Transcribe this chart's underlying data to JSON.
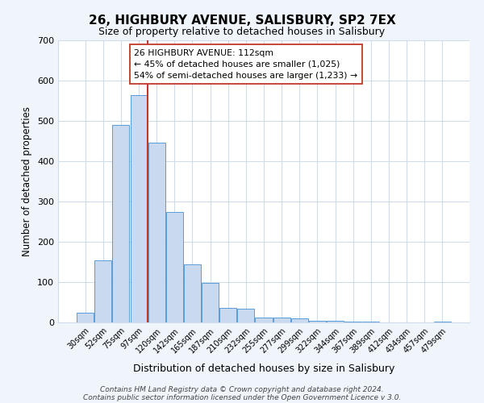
{
  "title": "26, HIGHBURY AVENUE, SALISBURY, SP2 7EX",
  "subtitle": "Size of property relative to detached houses in Salisbury",
  "xlabel": "Distribution of detached houses by size in Salisbury",
  "ylabel": "Number of detached properties",
  "categories": [
    "30sqm",
    "52sqm",
    "75sqm",
    "97sqm",
    "120sqm",
    "142sqm",
    "165sqm",
    "187sqm",
    "210sqm",
    "232sqm",
    "255sqm",
    "277sqm",
    "299sqm",
    "322sqm",
    "344sqm",
    "367sqm",
    "389sqm",
    "412sqm",
    "434sqm",
    "457sqm",
    "479sqm"
  ],
  "bar_values": [
    25,
    155,
    490,
    565,
    447,
    275,
    145,
    98,
    37,
    35,
    13,
    13,
    10,
    5,
    5,
    2,
    2,
    1,
    0,
    0,
    3
  ],
  "bar_color": "#c9d9f0",
  "bar_edge_color": "#5b9bd5",
  "vline_x_index": 4,
  "vline_color": "#c0392b",
  "annotation_line1": "26 HIGHBURY AVENUE: 112sqm",
  "annotation_line2": "← 45% of detached houses are smaller (1,025)",
  "annotation_line3": "54% of semi-detached houses are larger (1,233) →",
  "annotation_box_color": "#ffffff",
  "annotation_box_edge": "#c0392b",
  "ylim": [
    0,
    700
  ],
  "yticks": [
    0,
    100,
    200,
    300,
    400,
    500,
    600,
    700
  ],
  "footer_line1": "Contains HM Land Registry data © Crown copyright and database right 2024.",
  "footer_line2": "Contains public sector information licensed under the Open Government Licence v 3.0.",
  "background_color": "#f0f5fb",
  "plot_bg_color": "#ffffff",
  "grid_color": "#d0dcea"
}
